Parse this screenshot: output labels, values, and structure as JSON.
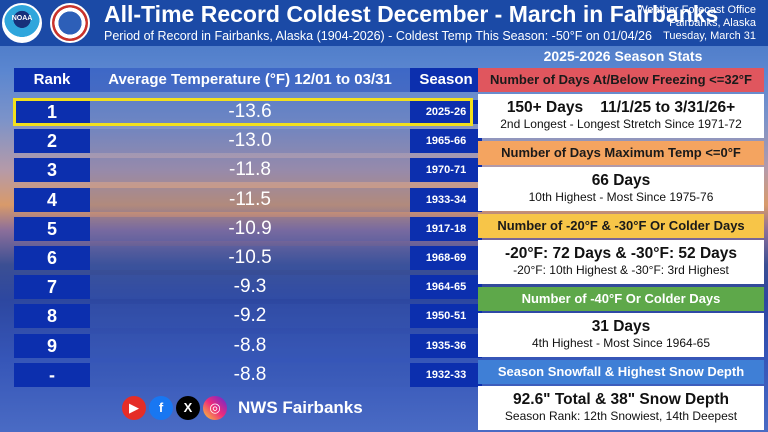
{
  "header": {
    "title": "All-Time Record Coldest December - March in Fairbanks",
    "subtitle": "Period of Record in Fairbanks, Alaska (1904-2026) - Coldest Temp This Season: -50°F on 01/04/26",
    "office": [
      "Weather Forecast Office",
      "Fairbanks, Alaska",
      "Tuesday, March 31"
    ],
    "logos": {
      "noaa": "NOAA",
      "nws": "NWS"
    }
  },
  "table": {
    "columns": [
      "Rank",
      "Average Temperature (°F) 12/01 to 03/31",
      "Season"
    ],
    "rows": [
      {
        "rank": "1",
        "temp": "-13.6",
        "season": "2025-26"
      },
      {
        "rank": "2",
        "temp": "-13.0",
        "season": "1965-66"
      },
      {
        "rank": "3",
        "temp": "-11.8",
        "season": "1970-71"
      },
      {
        "rank": "4",
        "temp": "-11.5",
        "season": "1933-34"
      },
      {
        "rank": "5",
        "temp": "-10.9",
        "season": "1917-18"
      },
      {
        "rank": "6",
        "temp": "-10.5",
        "season": "1968-69"
      },
      {
        "rank": "7",
        "temp": "-9.3",
        "season": "1964-65"
      },
      {
        "rank": "8",
        "temp": "-9.2",
        "season": "1950-51"
      },
      {
        "rank": "9",
        "temp": "-8.8",
        "season": "1935-36"
      },
      {
        "rank": "-",
        "temp": "-8.8",
        "season": "1932-33"
      }
    ]
  },
  "stats": {
    "title": "2025-2026 Season Stats",
    "items": [
      {
        "header": "Number of Days At/Below Freezing <=32°F",
        "color": "#e0565e",
        "text_color": "#1a1a1a",
        "main": "150+ Days    11/1/25 to 3/31/26+",
        "sub": "2nd Longest - Longest Stretch Since 1971-72"
      },
      {
        "header": "Number of Days Maximum Temp <=0°F",
        "color": "#f4a460",
        "text_color": "#1a1a1a",
        "main": "66 Days",
        "sub": "10th Highest - Most Since 1975-76"
      },
      {
        "header": "Number of -20°F & -30°F Or Colder Days",
        "color": "#f7c548",
        "text_color": "#1a1a1a",
        "main": "-20°F: 72 Days & -30°F: 52 Days",
        "sub": "-20°F: 10th Highest & -30°F: 3rd Highest"
      },
      {
        "header": "Number of -40°F Or Colder Days",
        "color": "#5ea84a",
        "text_color": "#ffffff",
        "main": "31 Days",
        "sub": "4th Highest - Most Since 1964-65"
      },
      {
        "header": "Season Snowfall & Highest Snow Depth",
        "color": "#3f7fd6",
        "text_color": "#ffffff",
        "main": "92.6\" Total & 38\" Snow Depth",
        "sub": "Season Rank: 12th Snowiest, 14th Deepest"
      }
    ]
  },
  "social": {
    "icons": [
      "youtube-icon",
      "facebook-icon",
      "x-icon",
      "instagram-icon"
    ],
    "glyphs": [
      "▶",
      "f",
      "X",
      "◎"
    ],
    "label": "NWS Fairbanks"
  }
}
